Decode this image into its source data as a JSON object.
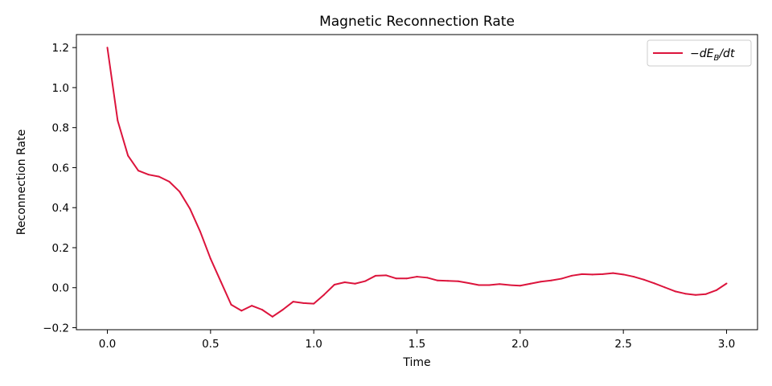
{
  "chart_data": {
    "type": "line",
    "title": "Magnetic Reconnection Rate",
    "xlabel": "Time",
    "ylabel": "Reconnection Rate",
    "xlim": [
      -0.15,
      3.15
    ],
    "ylim": [
      -0.21,
      1.265
    ],
    "xticks": [
      0.0,
      0.5,
      1.0,
      1.5,
      2.0,
      2.5,
      3.0
    ],
    "xtick_labels": [
      "0.0",
      "0.5",
      "1.0",
      "1.5",
      "2.0",
      "2.5",
      "3.0"
    ],
    "yticks": [
      -0.2,
      0.0,
      0.2,
      0.4,
      0.6,
      0.8,
      1.0,
      1.2
    ],
    "ytick_labels": [
      "−0.2",
      "0.0",
      "0.2",
      "0.4",
      "0.6",
      "0.8",
      "1.0",
      "1.2"
    ],
    "grid": false,
    "legend_position": "top-right",
    "series": [
      {
        "name": "−dE_B/dt",
        "legend_label": {
          "minus": "−",
          "main": "dE",
          "sub": "B",
          "tail": "/dt"
        },
        "color": "#dc143c",
        "x": [
          0.0,
          0.05,
          0.1,
          0.15,
          0.2,
          0.25,
          0.3,
          0.35,
          0.4,
          0.45,
          0.5,
          0.55,
          0.6,
          0.65,
          0.7,
          0.75,
          0.8,
          0.85,
          0.9,
          0.95,
          1.0,
          1.05,
          1.1,
          1.15,
          1.2,
          1.25,
          1.3,
          1.35,
          1.4,
          1.45,
          1.5,
          1.55,
          1.6,
          1.65,
          1.7,
          1.75,
          1.8,
          1.85,
          1.9,
          1.95,
          2.0,
          2.05,
          2.1,
          2.15,
          2.2,
          2.25,
          2.3,
          2.35,
          2.4,
          2.45,
          2.5,
          2.55,
          2.6,
          2.65,
          2.7,
          2.75,
          2.8,
          2.85,
          2.9,
          2.95,
          3.0
        ],
        "y": [
          1.2,
          0.835,
          0.66,
          0.585,
          0.565,
          0.555,
          0.53,
          0.48,
          0.395,
          0.28,
          0.145,
          0.03,
          -0.085,
          -0.115,
          -0.09,
          -0.11,
          -0.145,
          -0.11,
          -0.07,
          -0.077,
          -0.08,
          -0.035,
          0.015,
          0.027,
          0.02,
          0.033,
          0.06,
          0.062,
          0.046,
          0.046,
          0.055,
          0.05,
          0.036,
          0.034,
          0.032,
          0.023,
          0.013,
          0.013,
          0.018,
          0.013,
          0.01,
          0.02,
          0.03,
          0.036,
          0.045,
          0.06,
          0.068,
          0.066,
          0.068,
          0.073,
          0.066,
          0.055,
          0.04,
          0.022,
          0.002,
          -0.018,
          -0.03,
          -0.036,
          -0.032,
          -0.013,
          0.021
        ]
      }
    ]
  }
}
